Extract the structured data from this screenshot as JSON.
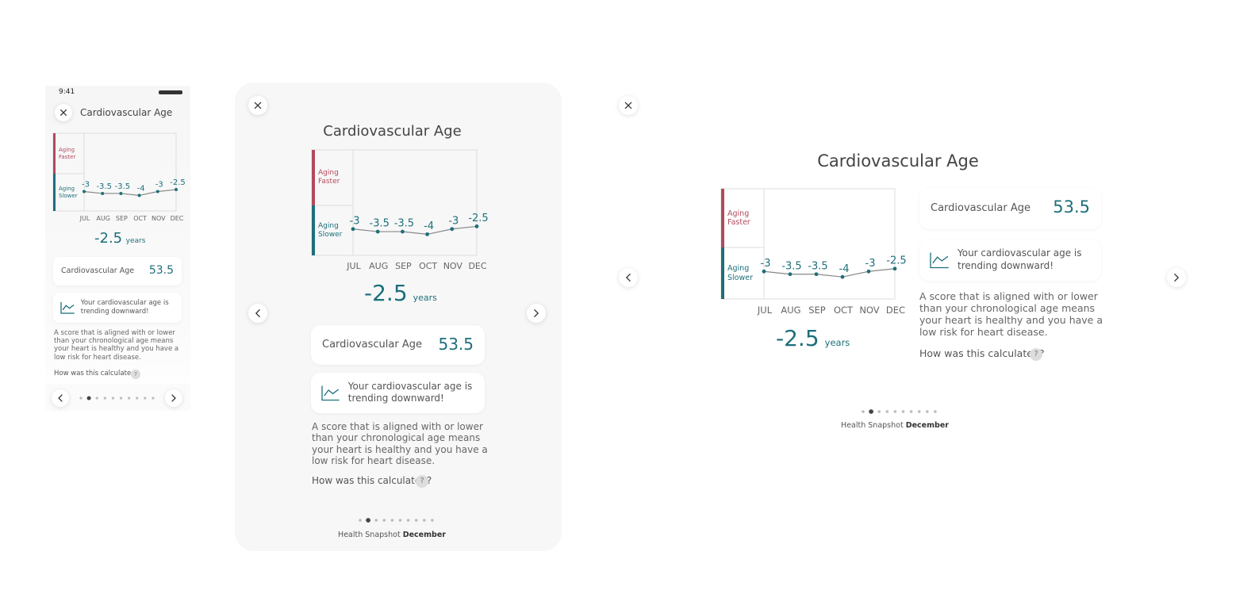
{
  "status": {
    "time": "9:41"
  },
  "title": "Cardiovascular Age",
  "chart": {
    "zones": [
      "Aging Faster",
      "Aging Slower"
    ],
    "categories": [
      "JUL",
      "AUG",
      "SEP",
      "OCT",
      "NOV",
      "DEC"
    ],
    "values": [
      -3,
      -3.5,
      -3.5,
      -4,
      -3,
      -2.5
    ],
    "ylim": [
      -8,
      12
    ]
  },
  "result": {
    "value": -2.5,
    "unit": "years"
  },
  "score": {
    "label": "Cardiovascular Age",
    "value": 53.5
  },
  "trend": "Your cardiovascular age is trending downward!",
  "description": "A score that is aligned with or lower than your chronological age means your heart is healthy and you have a low risk for heart disease.",
  "help": {
    "label": "How was this calculated?",
    "icon": "?"
  },
  "pagination": {
    "count": 10,
    "active": 1
  },
  "footer": {
    "prefix": "Health Snapshot",
    "month": "December"
  }
}
